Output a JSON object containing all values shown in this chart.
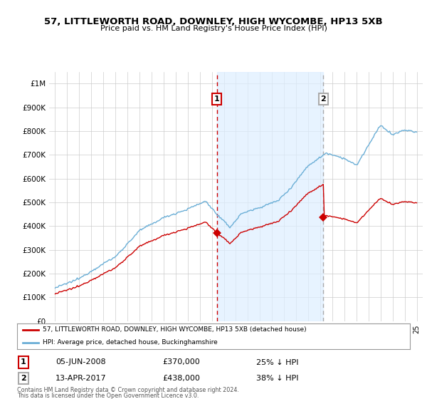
{
  "title": "57, LITTLEWORTH ROAD, DOWNLEY, HIGH WYCOMBE, HP13 5XB",
  "subtitle": "Price paid vs. HM Land Registry's House Price Index (HPI)",
  "legend_line1": "57, LITTLEWORTH ROAD, DOWNLEY, HIGH WYCOMBE, HP13 5XB (detached house)",
  "legend_line2": "HPI: Average price, detached house, Buckinghamshire",
  "footer": "Contains HM Land Registry data © Crown copyright and database right 2024.\nThis data is licensed under the Open Government Licence v3.0.",
  "transaction1_date": "05-JUN-2008",
  "transaction1_price": 370000,
  "transaction1_hpi": "25% ↓ HPI",
  "transaction2_date": "13-APR-2017",
  "transaction2_price": 438000,
  "transaction2_hpi": "38% ↓ HPI",
  "hpi_color": "#6aaed6",
  "price_color": "#cc0000",
  "vline1_color": "#cc0000",
  "vline2_color": "#aaaaaa",
  "fill_color": "#ddeeff",
  "background_color": "#ffffff",
  "grid_color": "#cccccc",
  "ylim": [
    0,
    1050000
  ],
  "yticks": [
    0,
    100000,
    200000,
    300000,
    400000,
    500000,
    600000,
    700000,
    800000,
    900000,
    1000000
  ],
  "ytick_labels": [
    "£0",
    "£100K",
    "£200K",
    "£300K",
    "£400K",
    "£500K",
    "£600K",
    "£700K",
    "£800K",
    "£900K",
    "£1M"
  ]
}
